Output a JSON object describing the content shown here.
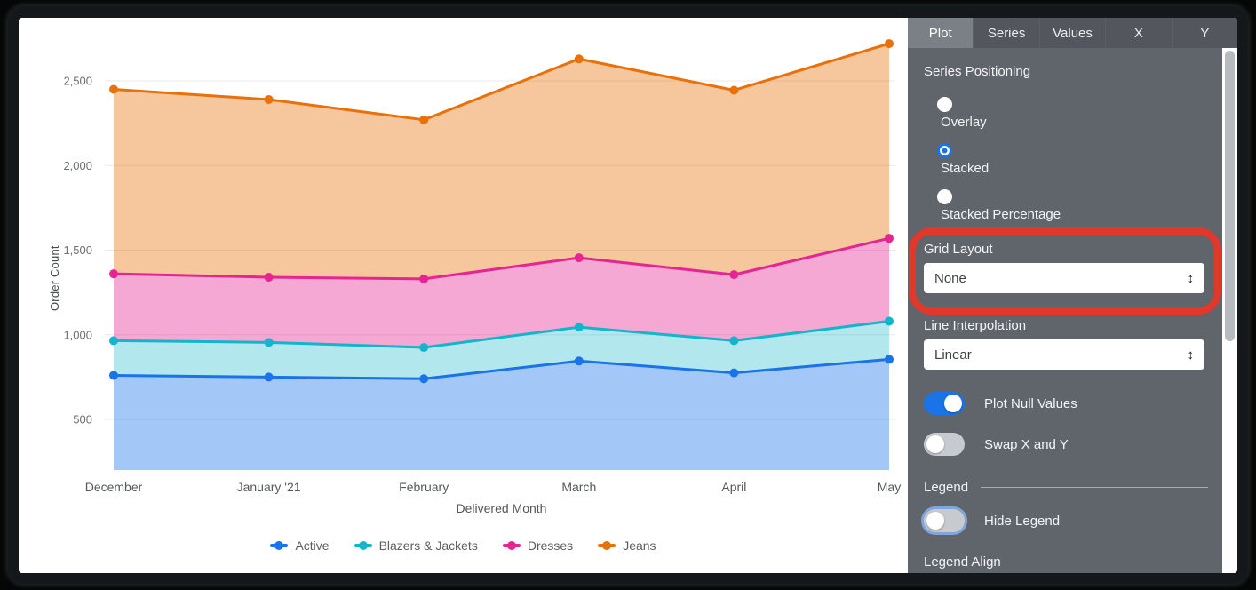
{
  "chart_data": {
    "type": "area",
    "stacked": true,
    "title": "",
    "xlabel": "Delivered Month",
    "ylabel": "Order Count",
    "categories": [
      "December",
      "January '21",
      "February",
      "March",
      "April",
      "May"
    ],
    "series": [
      {
        "name": "Active",
        "color": "#1a73e8",
        "fill": "rgba(26,115,232,0.40)",
        "values": [
          760,
          750,
          740,
          845,
          775,
          855
        ]
      },
      {
        "name": "Blazers & Jackets",
        "color": "#12b5cb",
        "fill": "rgba(18,181,203,0.32)",
        "values": [
          205,
          205,
          185,
          200,
          190,
          225
        ]
      },
      {
        "name": "Dresses",
        "color": "#e52592",
        "fill": "rgba(229,37,146,0.40)",
        "values": [
          395,
          385,
          405,
          410,
          390,
          490
        ]
      },
      {
        "name": "Jeans",
        "color": "#e8710a",
        "fill": "rgba(232,113,10,0.40)",
        "values": [
          1090,
          1050,
          940,
          1175,
          1090,
          1150
        ]
      }
    ],
    "stacked_totals": {
      "Active": [
        760,
        750,
        740,
        845,
        775,
        855
      ],
      "plus_Blazers": [
        965,
        955,
        925,
        1045,
        965,
        1080
      ],
      "plus_Dresses": [
        1360,
        1340,
        1330,
        1455,
        1355,
        1570
      ],
      "plus_Jeans": [
        2450,
        2390,
        2270,
        2630,
        2445,
        2720
      ]
    },
    "y_ticks": [
      500,
      1000,
      1500,
      2000,
      2500
    ],
    "y_tick_labels": [
      "500",
      "1,000",
      "1,500",
      "2,000",
      "2,500"
    ],
    "ylim": [
      200,
      2875
    ],
    "grid": true,
    "legend_position": "bottom"
  },
  "panel": {
    "tabs": [
      {
        "label": "Plot",
        "active": true
      },
      {
        "label": "Series",
        "active": false
      },
      {
        "label": "Values",
        "active": false
      },
      {
        "label": "X",
        "active": false
      },
      {
        "label": "Y",
        "active": false
      }
    ],
    "series_positioning": {
      "label": "Series Positioning",
      "options": [
        {
          "label": "Overlay",
          "selected": false
        },
        {
          "label": "Stacked",
          "selected": true
        },
        {
          "label": "Stacked Percentage",
          "selected": false
        }
      ]
    },
    "grid_layout": {
      "label": "Grid Layout",
      "value": "None"
    },
    "line_interpolation": {
      "label": "Line Interpolation",
      "value": "Linear"
    },
    "plot_null_values": {
      "label": "Plot Null Values",
      "on": true
    },
    "swap_x_y": {
      "label": "Swap X and Y",
      "on": false
    },
    "legend_section": {
      "header": "Legend",
      "hide_legend": {
        "label": "Hide Legend",
        "on": false
      },
      "legend_align_label": "Legend Align"
    }
  },
  "annotation": {
    "highlighted_section": "Grid Layout",
    "color": "#e2372b"
  },
  "colors": {
    "accent_blue": "#1a73e8",
    "panel_bg": "#60646b",
    "tabbar_bg": "#53565c",
    "active_tab_bg": "#7b8086",
    "gridline": "#e8e8e8"
  }
}
